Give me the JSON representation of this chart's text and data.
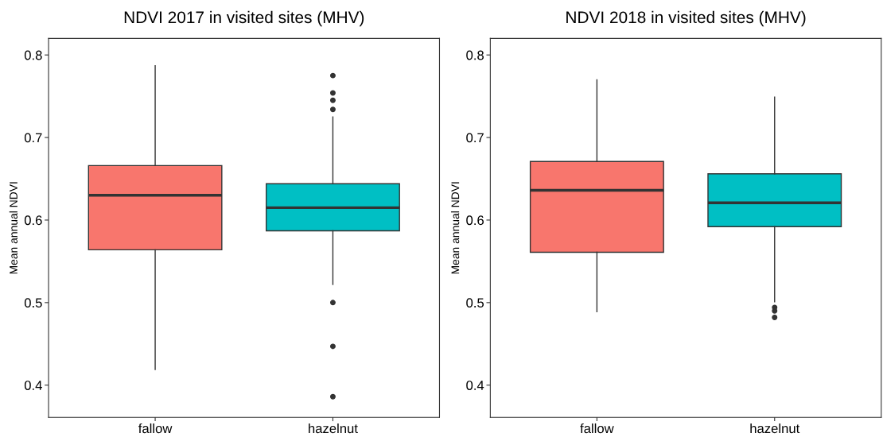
{
  "chart_data": [
    {
      "type": "box",
      "title": "NDVI 2017 in visited sites (MHV)",
      "ylabel": "Mean annual NDVI",
      "categories": [
        "fallow",
        "hazelnut"
      ],
      "colors": [
        "#f8766d",
        "#00bfc4"
      ],
      "ylim": [
        0.361,
        0.82
      ],
      "yticks": [
        0.4,
        0.5,
        0.6,
        0.7,
        0.8
      ],
      "grid": false,
      "boxes": [
        {
          "low": 0.419,
          "q1": 0.564,
          "median": 0.63,
          "q3": 0.666,
          "high": 0.787
        },
        {
          "low": 0.522,
          "q1": 0.587,
          "median": 0.615,
          "q3": 0.644,
          "high": 0.725,
          "outliers": [
            0.775,
            0.754,
            0.745,
            0.734,
            0.5,
            0.447,
            0.386
          ]
        }
      ]
    },
    {
      "type": "box",
      "title": "NDVI 2018 in visited sites (MHV)",
      "ylabel": "Mean annual NDVI",
      "categories": [
        "fallow",
        "hazelnut"
      ],
      "colors": [
        "#f8766d",
        "#00bfc4"
      ],
      "ylim": [
        0.361,
        0.82
      ],
      "yticks": [
        0.4,
        0.5,
        0.6,
        0.7,
        0.8
      ],
      "grid": false,
      "boxes": [
        {
          "low": 0.489,
          "q1": 0.561,
          "median": 0.636,
          "q3": 0.671,
          "high": 0.77
        },
        {
          "low": 0.501,
          "q1": 0.592,
          "median": 0.621,
          "q3": 0.656,
          "high": 0.749,
          "outliers": [
            0.494,
            0.49,
            0.482
          ]
        }
      ]
    }
  ]
}
